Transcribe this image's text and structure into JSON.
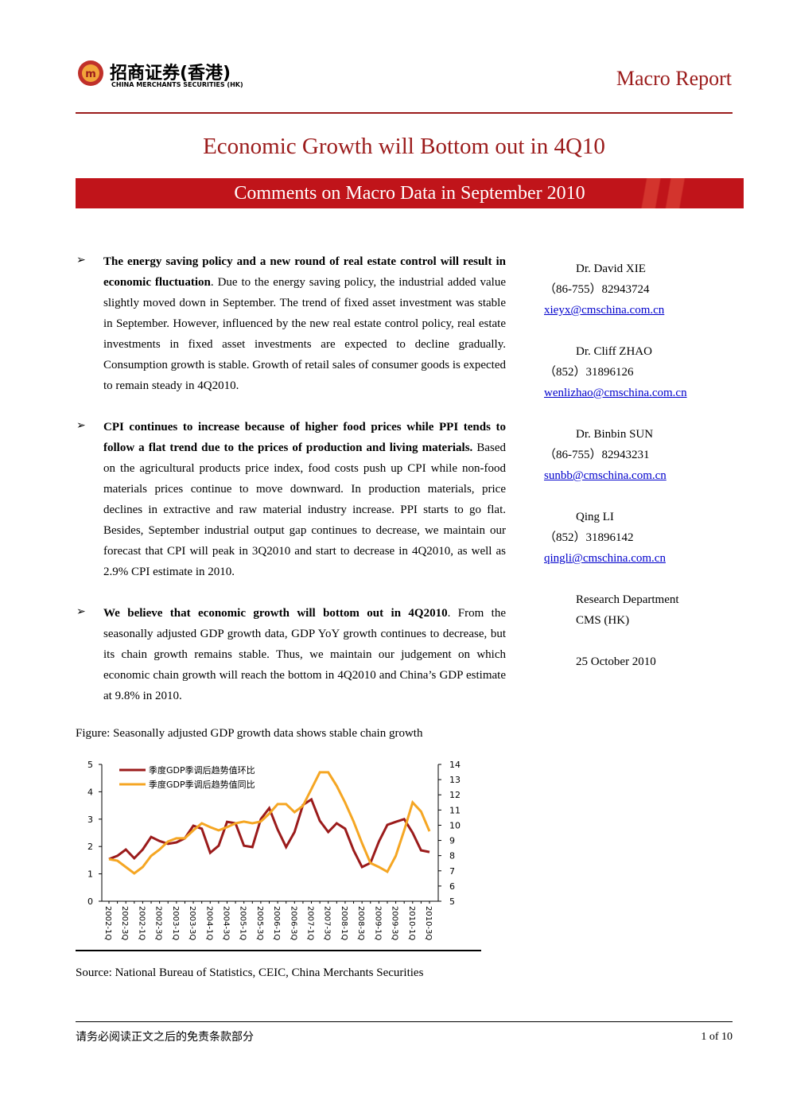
{
  "header": {
    "logo_cn": "招商证券(香港)",
    "logo_en": "CHINA MERCHANTS SECURITIES (HK)",
    "report_type": "Macro Report"
  },
  "title": "Economic Growth will Bottom out in 4Q10",
  "subtitle": "Comments on Macro Data in September 2010",
  "bullets": [
    {
      "bold": "The energy saving policy and a new round of real estate control will result in economic fluctuation",
      "text": ". Due to the energy saving policy, the industrial added value slightly moved down in September. The trend of fixed asset investment was stable in September. However, influenced by the new real estate control policy, real estate investments in fixed asset investments are expected to decline gradually. Consumption growth is stable. Growth of retail sales of consumer goods is expected to remain steady in 4Q2010."
    },
    {
      "bold": "CPI continues to increase because of higher food prices while PPI tends to follow a flat trend due to the prices of production and living materials.",
      "text": " Based on the agricultural products price index, food costs push up CPI while non-food materials prices continue to move downward. In production materials, price declines in extractive and raw material industry increase. PPI starts to go flat. Besides, September industrial output gap continues to decrease, we maintain our forecast that CPI will peak in 3Q2010 and start to decrease in 4Q2010, as well as 2.9% CPI estimate in 2010."
    },
    {
      "bold": "We believe that economic growth will bottom out in 4Q2010",
      "text": ". From the seasonally adjusted GDP growth data, GDP YoY growth continues to decrease, but its chain growth remains stable. Thus, we maintain our judgement on which economic chain growth will reach the bottom in 4Q2010 and China’s GDP estimate at 9.8% in 2010."
    }
  ],
  "contacts": [
    {
      "name": "Dr. David XIE",
      "phone": "（86-755）82943724",
      "email": "xieyx@cmschina.com.cn"
    },
    {
      "name": "Dr. Cliff ZHAO",
      "phone": "（852）31896126",
      "email": "wenlizhao@cmschina.com.cn"
    },
    {
      "name": "Dr. Binbin SUN",
      "phone": "（86-755）82943231",
      "email": "sunbb@cmschina.com.cn"
    },
    {
      "name": "Qing LI",
      "phone": "（852）31896142",
      "email": "qingli@cmschina.com.cn"
    }
  ],
  "department": [
    "Research Department",
    "CMS (HK)"
  ],
  "date": "25 October 2010",
  "figure_caption": "Figure:   Seasonally adjusted GDP growth data shows stable chain growth",
  "chart_data": {
    "type": "line",
    "categories": [
      "2002-1Q",
      null,
      "2002-3Q",
      null,
      "2002-1Q",
      null,
      "2002-3Q",
      null,
      "2003-1Q",
      null,
      "2003-3Q",
      null,
      "2004-1Q",
      null,
      "2004-3Q",
      null,
      "2005-1Q",
      null,
      "2005-3Q",
      null,
      "2006-1Q",
      null,
      "2006-3Q",
      null,
      "2007-1Q",
      null,
      "2007-3Q",
      null,
      "2008-1Q",
      null,
      "2008-3Q",
      null,
      "2009-1Q",
      null,
      "2009-3Q",
      null,
      "2010-1Q",
      null,
      "2010-3Q"
    ],
    "series": [
      {
        "name": "季度GDP季调后趋势值环比",
        "color": "#9b1b1b",
        "values": [
          1.54,
          1.66,
          1.89,
          1.57,
          1.89,
          2.35,
          2.2,
          2.1,
          2.15,
          2.3,
          2.76,
          2.65,
          1.77,
          2.03,
          2.9,
          2.85,
          2.03,
          1.98,
          3.0,
          3.4,
          2.62,
          1.98,
          2.53,
          3.52,
          3.72,
          2.94,
          2.53,
          2.85,
          2.65,
          1.86,
          1.25,
          1.4,
          2.18,
          2.79,
          2.9,
          3.0,
          2.5,
          1.86,
          1.8
        ]
      },
      {
        "name": "季度GDP季调后趋势值同比",
        "color": "#f5a623",
        "axis": "y2",
        "values": [
          7.77,
          7.67,
          7.25,
          6.83,
          7.25,
          7.98,
          8.4,
          8.93,
          9.14,
          9.14,
          9.66,
          10.13,
          9.87,
          9.66,
          9.87,
          10.13,
          10.24,
          10.13,
          10.24,
          10.76,
          11.39,
          11.39,
          10.86,
          11.28,
          12.38,
          13.48,
          13.48,
          12.59,
          11.49,
          10.24,
          8.82,
          7.51,
          7.25,
          6.94,
          7.98,
          9.66,
          11.5,
          10.9,
          9.6
        ]
      }
    ],
    "ylim": [
      0,
      5
    ],
    "yticks": [
      0,
      1,
      2,
      3,
      4,
      5
    ],
    "y2lim": [
      5,
      14
    ],
    "y2ticks": [
      5,
      6,
      7,
      8,
      9,
      10,
      11,
      12,
      13,
      14
    ],
    "legend": "top-left",
    "grid": false
  },
  "source": "Source:   National Bureau of Statistics, CEIC, China Merchants Securities",
  "footer": {
    "disclaimer": "请务必阅读正文之后的免责条款部分",
    "page": "1 of 10"
  }
}
